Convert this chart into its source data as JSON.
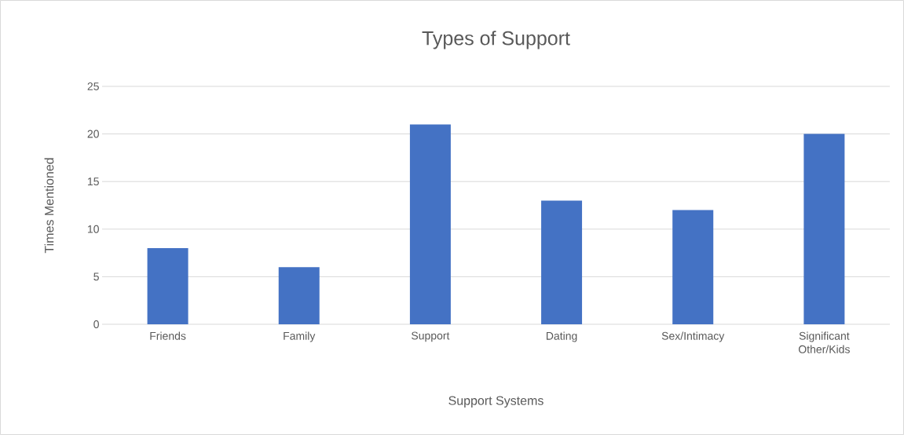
{
  "chart_data": {
    "type": "bar",
    "title": "Types of Support",
    "xlabel": "Support Systems",
    "ylabel": "Times Mentioned",
    "categories": [
      "Friends",
      "Family",
      "Support",
      "Dating",
      "Sex/Intimacy",
      "Significant Other/Kids"
    ],
    "values": [
      8,
      6,
      21,
      13,
      12,
      20
    ],
    "color": "#4472c4",
    "ylim": [
      0,
      25
    ],
    "yticks": [
      0,
      5,
      10,
      15,
      20,
      25
    ],
    "grid": "y"
  }
}
